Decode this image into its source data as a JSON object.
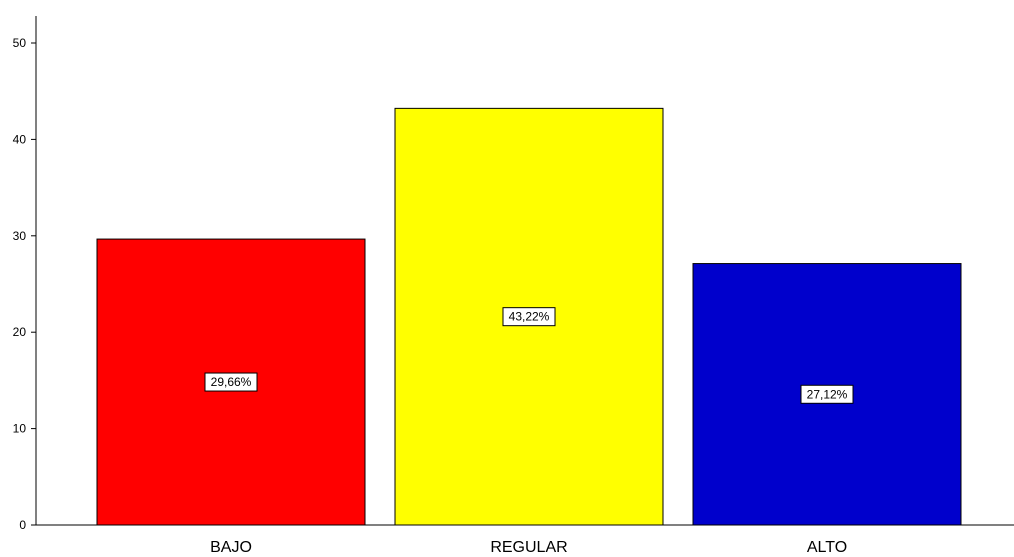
{
  "chart_data": {
    "type": "bar",
    "categories": [
      "BAJO",
      "REGULAR",
      "ALTO"
    ],
    "values": [
      29.66,
      43.22,
      27.12
    ],
    "data_labels": [
      "29,66%",
      "43,22%",
      "27,12%"
    ],
    "colors": [
      "#ff0000",
      "#ffff00",
      "#0000cc"
    ],
    "ylim": [
      0,
      50
    ],
    "yticks": [
      "0",
      "10",
      "20",
      "30",
      "40",
      "50"
    ],
    "grid": false,
    "legend": "none"
  }
}
